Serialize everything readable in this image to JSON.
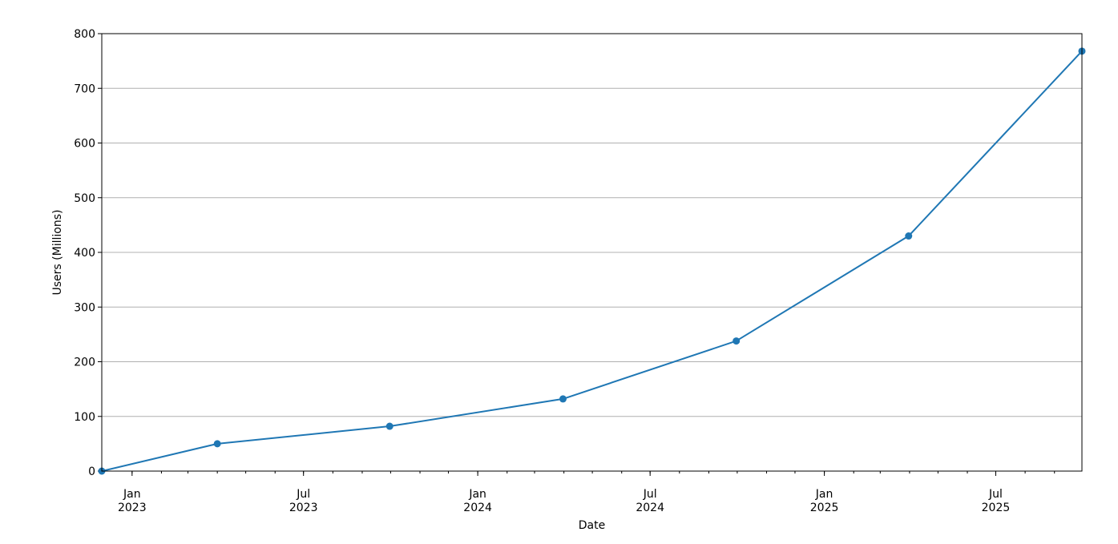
{
  "chart_data": {
    "type": "line",
    "title": "",
    "xlabel": "Date",
    "ylabel": "Users (Millions)",
    "x_axis_type": "date",
    "xlim": [
      "2022-11-30",
      "2025-09-30"
    ],
    "ylim": [
      0,
      800
    ],
    "yticks": [
      0,
      100,
      200,
      300,
      400,
      500,
      600,
      700,
      800
    ],
    "xticks_major": [
      {
        "date": "2023-01-01",
        "label_line1": "Jan",
        "label_line2": "2023"
      },
      {
        "date": "2023-07-01",
        "label_line1": "Jul",
        "label_line2": "2023"
      },
      {
        "date": "2024-01-01",
        "label_line1": "Jan",
        "label_line2": "2024"
      },
      {
        "date": "2024-07-01",
        "label_line1": "Jul",
        "label_line2": "2024"
      },
      {
        "date": "2025-01-01",
        "label_line1": "Jan",
        "label_line2": "2025"
      },
      {
        "date": "2025-07-01",
        "label_line1": "Jul",
        "label_line2": "2025"
      }
    ],
    "xticks_minor": "monthly",
    "grid": "y",
    "line_color": "#1f77b4",
    "marker": "circle",
    "series": [
      {
        "x": [
          "2022-11-30",
          "2023-04-01",
          "2023-09-30",
          "2024-03-31",
          "2024-09-30",
          "2025-03-31",
          "2025-09-30"
        ],
        "values": [
          0,
          50,
          82,
          132,
          238,
          430,
          768
        ]
      }
    ]
  }
}
